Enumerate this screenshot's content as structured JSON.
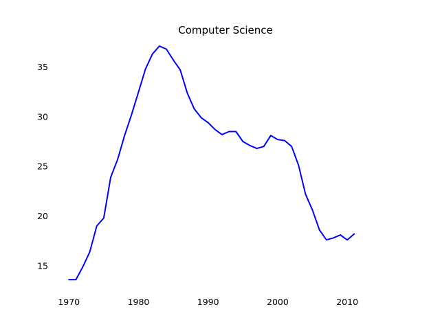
{
  "chart_data": {
    "type": "line",
    "title": "Computer Science",
    "xlabel": "",
    "ylabel": "",
    "xlim": [
      1968,
      2017
    ],
    "ylim": [
      12.5,
      37.8
    ],
    "xticks": [
      1970,
      1980,
      1990,
      2000,
      2010
    ],
    "yticks": [
      15,
      20,
      25,
      30,
      35
    ],
    "xtick_labels": [
      "1970",
      "1980",
      "1990",
      "2000",
      "2010"
    ],
    "ytick_labels": [
      "15",
      "20",
      "25",
      "30",
      "35"
    ],
    "grid": false,
    "axis_spines": false,
    "series": [
      {
        "color": "#0000ff",
        "x": [
          1970,
          1971,
          1972,
          1973,
          1974,
          1975,
          1976,
          1977,
          1978,
          1979,
          1980,
          1981,
          1982,
          1983,
          1984,
          1985,
          1986,
          1987,
          1988,
          1989,
          1990,
          1991,
          1992,
          1993,
          1994,
          1995,
          1996,
          1997,
          1998,
          1999,
          2000,
          2001,
          2002,
          2003,
          2004,
          2005,
          2006,
          2007,
          2008,
          2009,
          2010,
          2011
        ],
        "values": [
          13.6,
          13.6,
          14.9,
          16.4,
          19.0,
          19.8,
          23.9,
          25.7,
          28.1,
          30.2,
          32.5,
          34.8,
          36.3,
          37.1,
          36.8,
          35.7,
          34.7,
          32.4,
          30.8,
          29.9,
          29.4,
          28.7,
          28.2,
          28.5,
          28.5,
          27.5,
          27.1,
          26.8,
          27.0,
          28.1,
          27.7,
          27.6,
          27.0,
          25.1,
          22.2,
          20.6,
          18.6,
          17.6,
          17.8,
          18.1,
          17.6,
          18.2
        ]
      }
    ]
  }
}
